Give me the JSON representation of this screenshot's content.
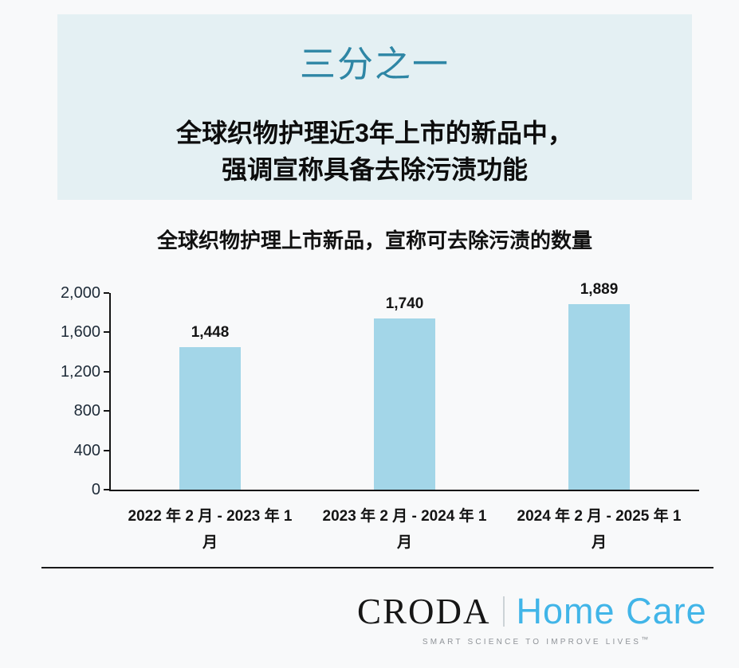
{
  "banner": {
    "title": "三分之一",
    "subtitle_line1": "全球织物护理近3年上市的新品中，",
    "subtitle_line2": "强调宣称具备去除污渍功能",
    "bg_color": "#e4f0f3",
    "title_color": "#2e86a5"
  },
  "chart_data": {
    "type": "bar",
    "title": "全球织物护理上市新品，宣称可去除污渍的数量",
    "categories": [
      "2022 年 2 月 - 2023 年 1 月",
      "2023 年 2 月 - 2024 年 1 月",
      "2024 年 2 月 - 2025 年 1 月"
    ],
    "category_lines": [
      [
        "2022 年 2 月 - 2023 年 1",
        "月"
      ],
      [
        "2023 年 2 月 - 2024 年 1",
        "月"
      ],
      [
        "2024 年 2 月 - 2025 年 1",
        "月"
      ]
    ],
    "values": [
      1448,
      1740,
      1889
    ],
    "value_labels": [
      "1,448",
      "1,740",
      "1,889"
    ],
    "xlabel": "",
    "ylabel": "",
    "ylim": [
      0,
      2000
    ],
    "y_ticks": [
      0,
      400,
      800,
      1200,
      1600,
      2000
    ],
    "y_tick_labels": [
      "0",
      "400",
      "800",
      "1,200",
      "1,600",
      "2,000"
    ],
    "grid": false,
    "legend": false,
    "bar_color": "#a3d6e8",
    "axis_color": "#141414"
  },
  "footer": {
    "brand": "CRODA",
    "division": "Home Care",
    "tagline": "SMART SCIENCE TO IMPROVE LIVES",
    "tm": "™",
    "division_color": "#41b5e8"
  }
}
